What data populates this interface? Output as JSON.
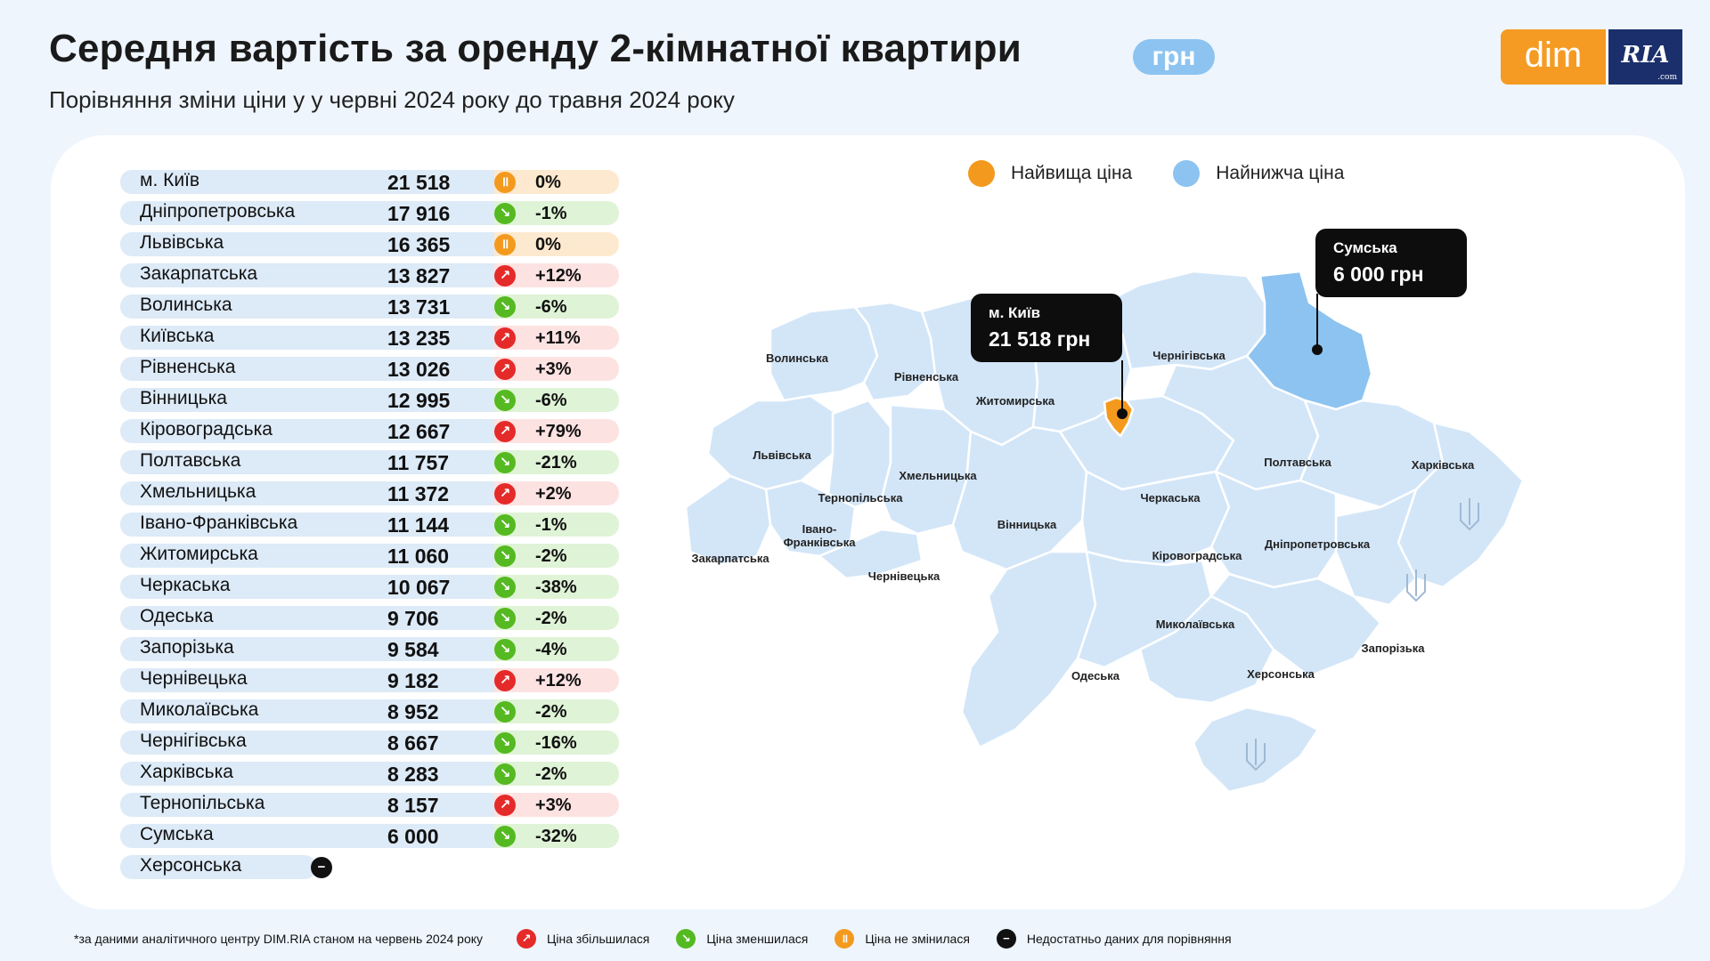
{
  "header": {
    "title": "Середня вартість за оренду 2-кімнатної квартири",
    "unit": "грн",
    "subtitle": "Порівняння зміни ціни у у червні 2024 року до травня 2024 року"
  },
  "logo": {
    "dim": "dim",
    "ria": "RIA",
    "ria_domain": ".com"
  },
  "legend": {
    "highest": "Найвища ціна",
    "lowest": "Найнижча ціна",
    "highest_color": "#f39a1e",
    "lowest_color": "#8cc3f0"
  },
  "rows": [
    {
      "region": "м. Київ",
      "price": "21 518",
      "change": "0%",
      "trend": "same"
    },
    {
      "region": "Дніпропетровська",
      "price": "17 916",
      "change": "-1%",
      "trend": "down"
    },
    {
      "region": "Львівська",
      "price": "16 365",
      "change": "0%",
      "trend": "same"
    },
    {
      "region": "Закарпатська",
      "price": "13 827",
      "change": "+12%",
      "trend": "up"
    },
    {
      "region": "Волинська",
      "price": "13 731",
      "change": "-6%",
      "trend": "down"
    },
    {
      "region": "Київська",
      "price": "13 235",
      "change": "+11%",
      "trend": "up"
    },
    {
      "region": "Рівненська",
      "price": "13 026",
      "change": "+3%",
      "trend": "up"
    },
    {
      "region": "Вінницька",
      "price": "12 995",
      "change": "-6%",
      "trend": "down"
    },
    {
      "region": "Кіровоградська",
      "price": "12 667",
      "change": "+79%",
      "trend": "up"
    },
    {
      "region": "Полтавська",
      "price": "11 757",
      "change": "-21%",
      "trend": "down"
    },
    {
      "region": "Хмельницька",
      "price": "11 372",
      "change": "+2%",
      "trend": "up"
    },
    {
      "region": "Івано-Франківська",
      "price": "11 144",
      "change": "-1%",
      "trend": "down"
    },
    {
      "region": "Житомирська",
      "price": "11 060",
      "change": "-2%",
      "trend": "down"
    },
    {
      "region": "Черкаська",
      "price": "10 067",
      "change": "-38%",
      "trend": "down"
    },
    {
      "region": "Одеська",
      "price": "9 706",
      "change": "-2%",
      "trend": "down"
    },
    {
      "region": "Запорізька",
      "price": "9 584",
      "change": "-4%",
      "trend": "down"
    },
    {
      "region": "Чернівецька",
      "price": "9 182",
      "change": "+12%",
      "trend": "up"
    },
    {
      "region": "Миколаївська",
      "price": "8 952",
      "change": "-2%",
      "trend": "down"
    },
    {
      "region": "Чернігівська",
      "price": "8 667",
      "change": "-16%",
      "trend": "down"
    },
    {
      "region": "Харківська",
      "price": "8 283",
      "change": "-2%",
      "trend": "down"
    },
    {
      "region": "Тернопільська",
      "price": "8 157",
      "change": "+3%",
      "trend": "up"
    },
    {
      "region": "Сумська",
      "price": "6 000",
      "change": "-32%",
      "trend": "down"
    },
    {
      "region": "Херсонська",
      "price": "",
      "change": "",
      "trend": "none"
    }
  ],
  "map": {
    "labels": [
      "Волинська",
      "Рівненська",
      "Житомирська",
      "Чернігівська",
      "Львівська",
      "Хмельницька",
      "Тернопільська",
      "Івано-",
      "Франківська",
      "Закарпатська",
      "Чернівецька",
      "Вінницька",
      "Черкаська",
      "Полтавська",
      "Харківська",
      "Кіровоградська",
      "Дніпропетровська",
      "Миколаївська",
      "Одеська",
      "Херсонська",
      "Запорізька"
    ],
    "callouts": {
      "kyiv": {
        "name": "м. Київ",
        "value": "21 518 грн"
      },
      "sumy": {
        "name": "Сумська",
        "value": "6 000 грн"
      }
    }
  },
  "footer": {
    "note": "*за даними аналітичного центру DIM.RIA станом на червень 2024 року",
    "up": "Ціна збільшилася",
    "down": "Ціна зменшилася",
    "same": "Ціна не змінилася",
    "none": "Недостатньо даних для порівняння"
  }
}
